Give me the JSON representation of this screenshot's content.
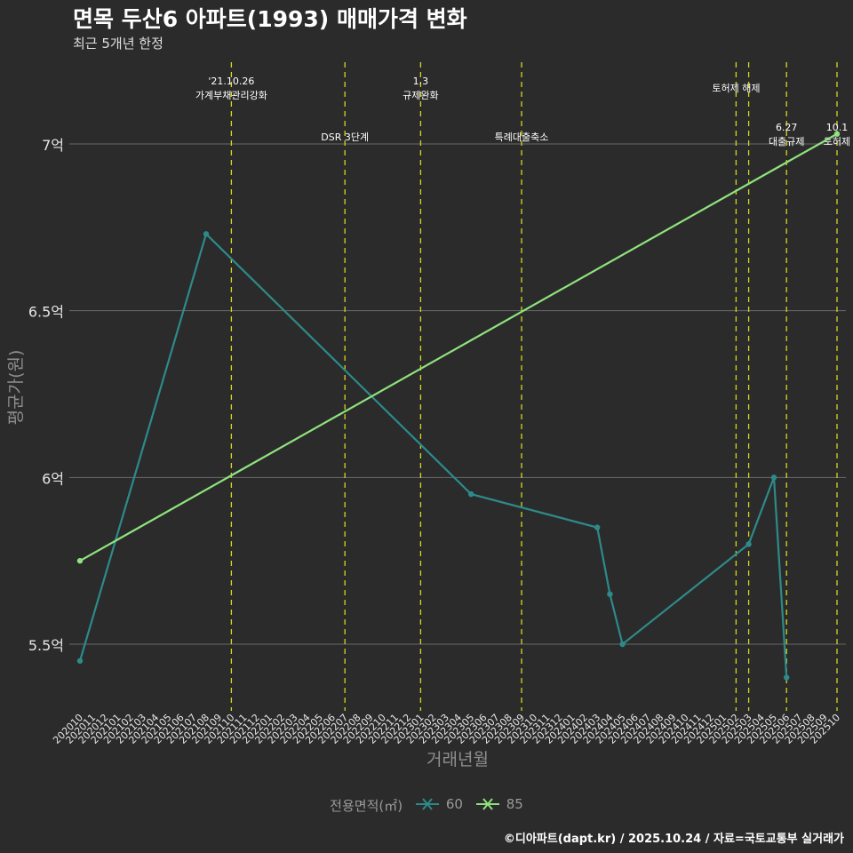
{
  "title": "면목 두산6 아파트(1993) 매매가격 변화",
  "subtitle": "최근 5개년 한정",
  "caption": "©디아파트(dapt.kr) / 2025.10.24 / 자료=국토교통부 실거래가",
  "legend": {
    "title": "전용면적(㎡)",
    "items": [
      "60",
      "85"
    ]
  },
  "colors": {
    "series60": "#2e8a8a",
    "series85": "#8fe37e",
    "event": "#d6d61c",
    "grid": "#6a6a6a",
    "axisText": "#e6e6e6",
    "axisTitle": "#8f8f8f"
  },
  "chart_data": {
    "type": "line",
    "title": "면목 두산6 아파트(1993) 매매가격 변화",
    "xlabel": "거래년월",
    "ylabel": "평균가(원)",
    "ylim": [
      5.3,
      7.25
    ],
    "yticks": [
      5.5,
      6,
      6.5,
      7
    ],
    "ytick_labels": [
      "5.5억",
      "6억",
      "6.5억",
      "7억"
    ],
    "categories": [
      "202010",
      "202011",
      "202012",
      "202101",
      "202102",
      "202103",
      "202104",
      "202105",
      "202106",
      "202107",
      "202108",
      "202109",
      "202110",
      "202111",
      "202112",
      "202201",
      "202202",
      "202203",
      "202204",
      "202205",
      "202206",
      "202207",
      "202208",
      "202209",
      "202210",
      "202211",
      "202212",
      "202301",
      "202302",
      "202303",
      "202304",
      "202305",
      "202306",
      "202307",
      "202308",
      "202309",
      "202310",
      "202311",
      "202312",
      "202401",
      "202402",
      "202403",
      "202404",
      "202405",
      "202406",
      "202407",
      "202408",
      "202409",
      "202410",
      "202411",
      "202412",
      "202501",
      "202502",
      "202503",
      "202504",
      "202505",
      "202506",
      "202507",
      "202508",
      "202509",
      "202510"
    ],
    "series": [
      {
        "name": "60",
        "points": [
          {
            "x": "202010",
            "y": 5.45
          },
          {
            "x": "202108",
            "y": 6.73
          },
          {
            "x": "202305",
            "y": 5.95
          },
          {
            "x": "202403",
            "y": 5.85
          },
          {
            "x": "202404",
            "y": 5.65
          },
          {
            "x": "202405",
            "y": 5.5
          },
          {
            "x": "202503",
            "y": 5.8
          },
          {
            "x": "202505",
            "y": 6.0
          },
          {
            "x": "202506",
            "y": 5.4
          }
        ]
      },
      {
        "name": "85",
        "points": [
          {
            "x": "202010",
            "y": 5.75
          },
          {
            "x": "202510",
            "y": 7.03
          }
        ]
      }
    ],
    "events": [
      {
        "x": "202110",
        "lines": [
          "'21.10.26",
          "가계부채관리강화"
        ],
        "level": "upper"
      },
      {
        "x": "202207",
        "lines": [
          "DSR 3단계"
        ],
        "level": "lower"
      },
      {
        "x": "202301",
        "lines": [
          "1.3",
          "규제완화"
        ],
        "level": "upper"
      },
      {
        "x": "202309",
        "lines": [
          "특례대출축소"
        ],
        "level": "lower"
      },
      {
        "x": "202502",
        "lines": [
          "토허제 해제"
        ],
        "level": "upper"
      },
      {
        "x": "202503",
        "lines": [],
        "level": "none"
      },
      {
        "x": "202506",
        "lines": [
          "6.27",
          "대출규제"
        ],
        "level": "lower"
      },
      {
        "x": "202510",
        "lines": [
          "10.1",
          "토허제"
        ],
        "level": "lower"
      }
    ]
  }
}
